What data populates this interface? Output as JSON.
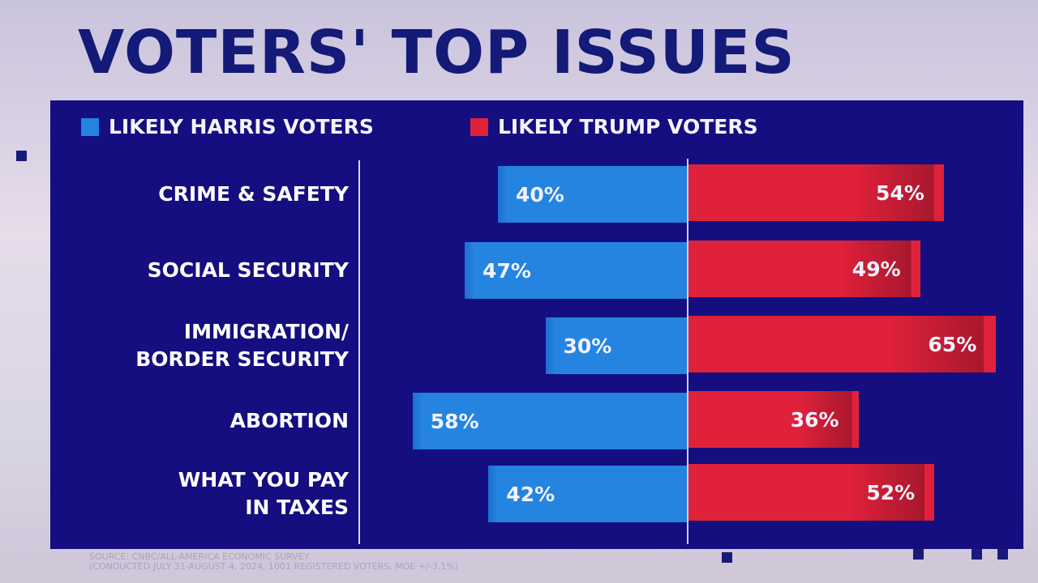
{
  "title": "VOTERS' TOP ISSUES",
  "colors": {
    "harris": "#2484e0",
    "trump": "#e0213a",
    "panel": "#140e80",
    "title": "#141a78"
  },
  "source": [
    "SOURCE: CNBC/ALL-AMERICA ECONOMIC SURVEY",
    "(CONDUCTED JULY 31-AUGUST 4, 2024, 1001 REGISTERED VOTERS, MOE +/-3.1%)"
  ],
  "chart_data": {
    "type": "bar",
    "orientation": "diverging-horizontal",
    "title": "VOTERS' TOP ISSUES",
    "legend": [
      "LIKELY HARRIS VOTERS",
      "LIKELY TRUMP VOTERS"
    ],
    "legend_placement": "top",
    "categories": [
      [
        "CRIME & SAFETY"
      ],
      [
        "SOCIAL SECURITY"
      ],
      [
        "IMMIGRATION/",
        "BORDER SECURITY"
      ],
      [
        "ABORTION"
      ],
      [
        "WHAT YOU PAY",
        "IN TAXES"
      ]
    ],
    "series": [
      {
        "name": "LIKELY HARRIS VOTERS",
        "values": [
          40,
          47,
          30,
          58,
          42
        ]
      },
      {
        "name": "LIKELY TRUMP VOTERS",
        "values": [
          54,
          49,
          65,
          36,
          52
        ]
      }
    ],
    "unit": "%"
  }
}
